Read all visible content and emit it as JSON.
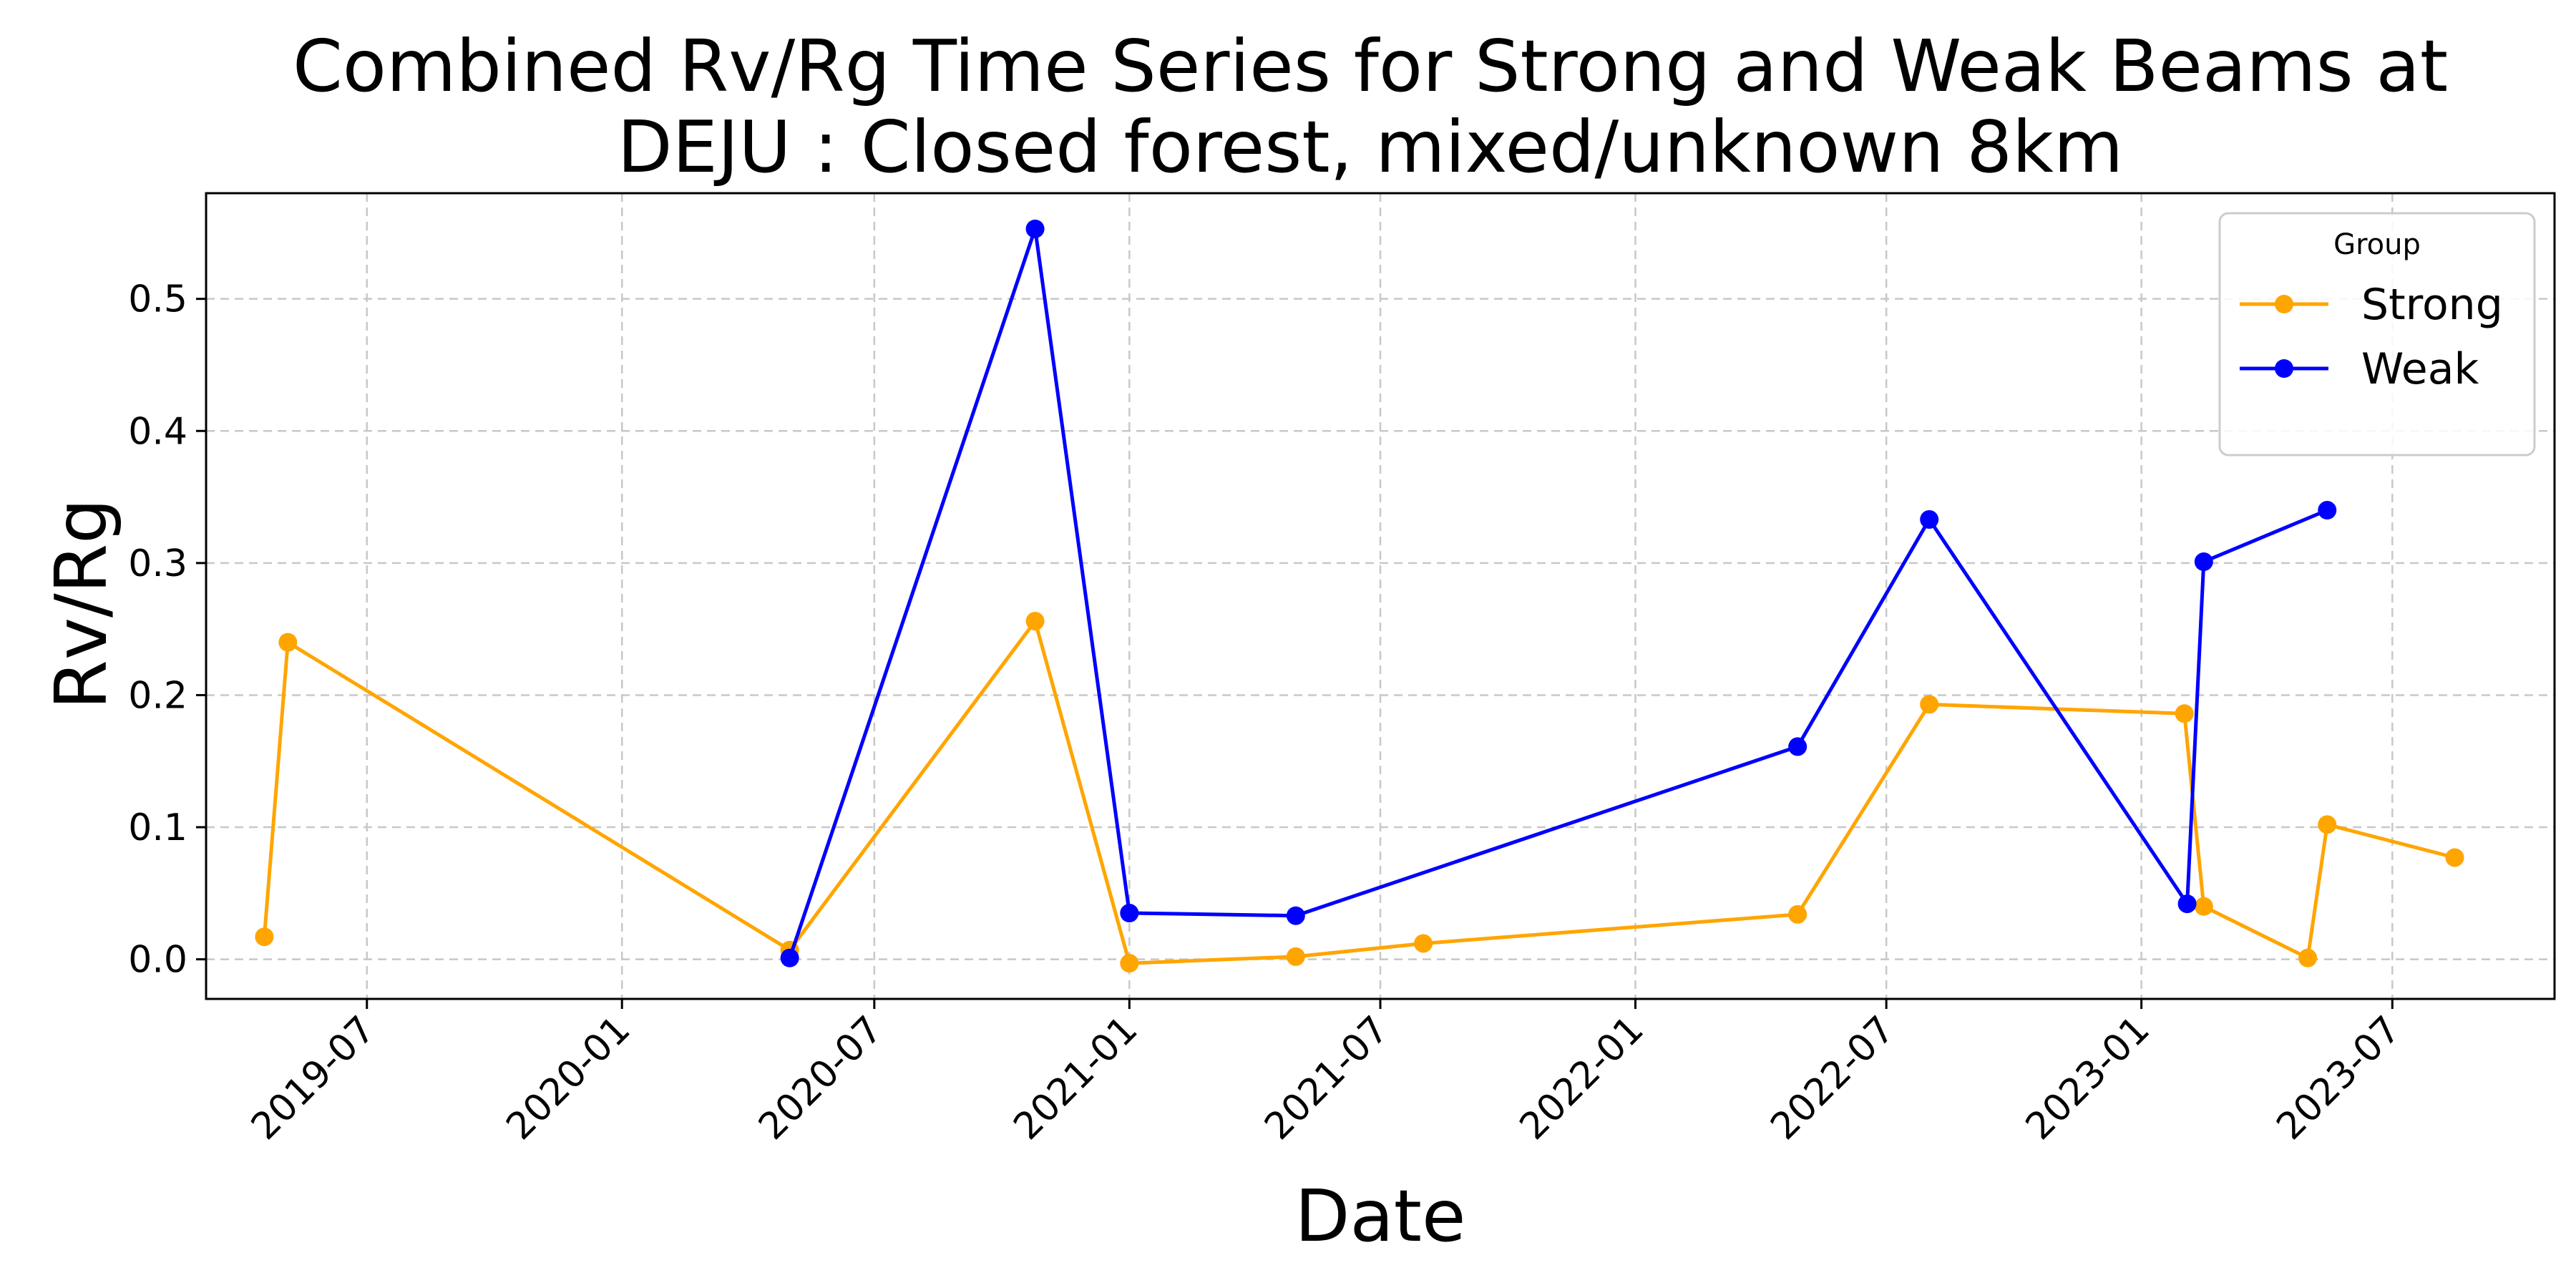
{
  "chart_data": {
    "type": "line",
    "title": [
      "Combined Rv/Rg Time Series for Strong and Weak Beams at",
      "DEJU : Closed forest, mixed/unknown 8km"
    ],
    "xlabel": "Date",
    "ylabel": "Rv/Rg",
    "x_ticks": [
      "2019-07",
      "2020-01",
      "2020-07",
      "2021-01",
      "2021-07",
      "2022-01",
      "2022-07",
      "2023-01",
      "2023-07"
    ],
    "y_ticks": [
      "0.0",
      "0.1",
      "0.2",
      "0.3",
      "0.4",
      "0.5"
    ],
    "xlim": [
      "2019-03-07",
      "2023-10-26"
    ],
    "ylim": [
      -0.03,
      0.58
    ],
    "grid": true,
    "legend": {
      "title": "Group",
      "placement": "top-right"
    },
    "series": [
      {
        "name": "Strong",
        "color": "#FFA500",
        "points": [
          {
            "x": "2019-04-18",
            "y": 0.017
          },
          {
            "x": "2019-05-05",
            "y": 0.24
          },
          {
            "x": "2020-05-01",
            "y": 0.007
          },
          {
            "x": "2020-10-25",
            "y": 0.256
          },
          {
            "x": "2021-01-01",
            "y": -0.003
          },
          {
            "x": "2021-05-01",
            "y": 0.002
          },
          {
            "x": "2021-08-01",
            "y": 0.012
          },
          {
            "x": "2022-04-28",
            "y": 0.034
          },
          {
            "x": "2022-08-01",
            "y": 0.193
          },
          {
            "x": "2023-02-01",
            "y": 0.186
          },
          {
            "x": "2023-02-15",
            "y": 0.04
          },
          {
            "x": "2023-05-01",
            "y": 0.001
          },
          {
            "x": "2023-05-15",
            "y": 0.102
          },
          {
            "x": "2023-08-15",
            "y": 0.077
          }
        ]
      },
      {
        "name": "Weak",
        "color": "#0000FF",
        "points": [
          {
            "x": "2020-05-01",
            "y": 0.001
          },
          {
            "x": "2020-10-25",
            "y": 0.553
          },
          {
            "x": "2021-01-01",
            "y": 0.035
          },
          {
            "x": "2021-05-01",
            "y": 0.033
          },
          {
            "x": "2022-04-28",
            "y": 0.161
          },
          {
            "x": "2022-08-01",
            "y": 0.333
          },
          {
            "x": "2023-02-03",
            "y": 0.042
          },
          {
            "x": "2023-02-15",
            "y": 0.301
          },
          {
            "x": "2023-05-15",
            "y": 0.34
          }
        ]
      }
    ]
  }
}
